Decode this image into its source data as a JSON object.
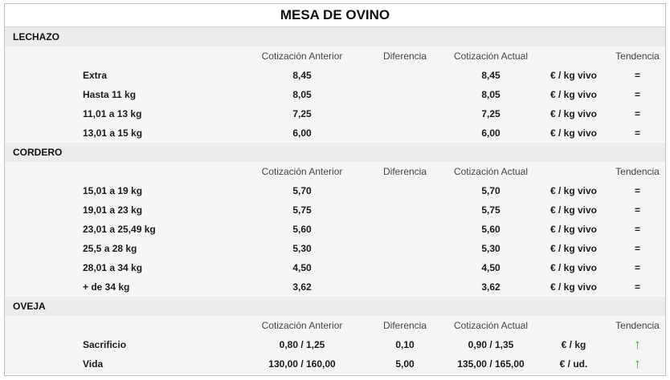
{
  "title": "MESA DE OVINO",
  "headers": {
    "prev": "Cotización Anterior",
    "diff": "Diferencia",
    "curr": "Cotización Actual",
    "trend": "Tendencia"
  },
  "sections": [
    {
      "name": "LECHAZO",
      "rows": [
        {
          "label": "Extra",
          "prev": "8,45",
          "diff": "",
          "curr": "8,45",
          "unit": "€ / kg vivo",
          "trend": "="
        },
        {
          "label": "Hasta 11 kg",
          "prev": "8,05",
          "diff": "",
          "curr": "8,05",
          "unit": "€ / kg vivo",
          "trend": "="
        },
        {
          "label": "11,01 a 13 kg",
          "prev": "7,25",
          "diff": "",
          "curr": "7,25",
          "unit": "€ / kg vivo",
          "trend": "="
        },
        {
          "label": "13,01 a 15 kg",
          "prev": "6,00",
          "diff": "",
          "curr": "6,00",
          "unit": "€ / kg vivo",
          "trend": "="
        }
      ]
    },
    {
      "name": "CORDERO",
      "rows": [
        {
          "label": "15,01 a 19 kg",
          "prev": "5,70",
          "diff": "",
          "curr": "5,70",
          "unit": "€ / kg vivo",
          "trend": "="
        },
        {
          "label": "19,01 a 23 kg",
          "prev": "5,75",
          "diff": "",
          "curr": "5,75",
          "unit": "€ / kg vivo",
          "trend": "="
        },
        {
          "label": "23,01 a 25,49 kg",
          "prev": "5,60",
          "diff": "",
          "curr": "5,60",
          "unit": "€ / kg vivo",
          "trend": "="
        },
        {
          "label": "25,5 a 28 kg",
          "prev": "5,30",
          "diff": "",
          "curr": "5,30",
          "unit": "€ / kg vivo",
          "trend": "="
        },
        {
          "label": "28,01 a 34 kg",
          "prev": "4,50",
          "diff": "",
          "curr": "4,50",
          "unit": "€ / kg vivo",
          "trend": "="
        },
        {
          "label": "+ de 34 kg",
          "prev": "3,62",
          "diff": "",
          "curr": "3,62",
          "unit": "€ / kg vivo",
          "trend": "="
        }
      ]
    },
    {
      "name": "OVEJA",
      "rows": [
        {
          "label": "Sacrificio",
          "prev": "0,80 / 1,25",
          "diff": "0,10",
          "curr": "0,90 / 1,35",
          "unit": "€ / kg",
          "trend": "↑"
        },
        {
          "label": "Vida",
          "prev": "130,00 / 160,00",
          "diff": "5,00",
          "curr": "135,00 / 165,00",
          "unit": "€ / ud.",
          "trend": "↑"
        }
      ]
    }
  ],
  "colors": {
    "trend_up": "#3aa84a",
    "section_bg": "#ececec",
    "row_bg": "#f5f5f5"
  }
}
